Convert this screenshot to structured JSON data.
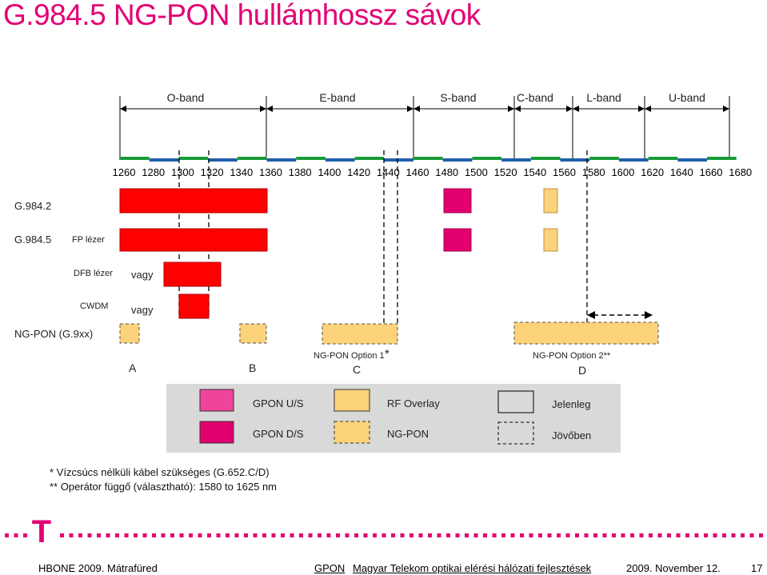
{
  "title": "G.984.5 NG-PON hullámhossz sávok",
  "bands": [
    "O-band",
    "E-band",
    "S-band",
    "C-band",
    "L-band",
    "U-band"
  ],
  "wavelength_ticks": [
    "1260",
    "1280",
    "1300",
    "1320",
    "1340",
    "1360",
    "1380",
    "1400",
    "1420",
    "1440",
    "1460",
    "1480",
    "1500",
    "1520",
    "1540",
    "1560",
    "1580",
    "1600",
    "1620",
    "1640",
    "1660",
    "1680"
  ],
  "rows": {
    "g9842": "G.984.2",
    "g9845": "G.984.5",
    "fp": "FP lézer",
    "dfb": "DFB lézer",
    "cwdm": "CWDM",
    "vagy1": "vagy",
    "vagy2": "vagy",
    "ngpon": "NG-PON (G.9xx)"
  },
  "options": {
    "a": "A",
    "b": "B",
    "c": "C",
    "d": "D",
    "opt1": "NG-PON Option 1",
    "opt1_star": "*",
    "opt2": "NG-PON Option 2**"
  },
  "legend": {
    "gpon_us": "GPON U/S",
    "gpon_ds": "GPON D/S",
    "rf": "RF Overlay",
    "ngpon": "NG-PON",
    "jelenleg": "Jelenleg",
    "jovoben": "Jövőben"
  },
  "colors": {
    "red": "#ff0000",
    "magenta": "#e2006f",
    "pink": "#ee4499",
    "peach": "#fcd27a",
    "title_magenta": "#e20074",
    "legend_bg": "#d9d9d9"
  },
  "footnotes": {
    "f1": "* Vízcsúcs nélküli kábel szükséges (G.652.C/D)",
    "f2": "** Operátor függő (választható): 1580 to 1625 nm"
  },
  "logo": "T",
  "footer": {
    "left": "HBONE 2009. Mátrafüred",
    "gpon": "GPON",
    "center": "Magyar Telekom optikai elérési hálózati fejlesztések",
    "date": "2009. November 12.",
    "page": "17"
  }
}
